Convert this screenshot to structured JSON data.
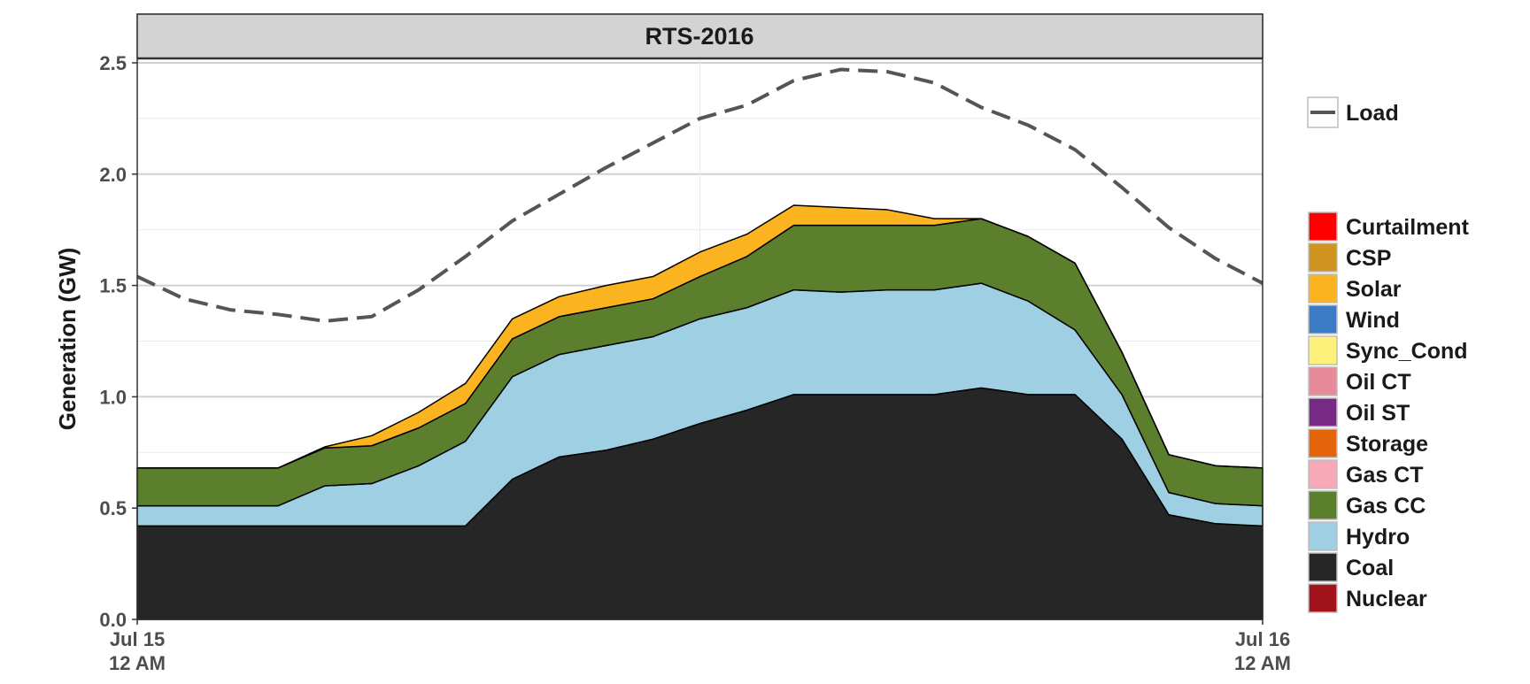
{
  "chart_data": {
    "type": "area",
    "panel_title": "RTS-2016",
    "ylabel": "Generation (GW)",
    "xlabel": "",
    "ylim": [
      0,
      2.5
    ],
    "y_ticks": [
      {
        "value": 0.0,
        "label": "0.0"
      },
      {
        "value": 0.5,
        "label": "0.5"
      },
      {
        "value": 1.0,
        "label": "1.0"
      },
      {
        "value": 1.5,
        "label": "1.5"
      },
      {
        "value": 2.0,
        "label": "2.0"
      },
      {
        "value": 2.5,
        "label": "2.5"
      }
    ],
    "x_ticks": [
      {
        "value": 0,
        "line1": "Jul 15",
        "line2": "12 AM"
      },
      {
        "value": 24,
        "line1": "Jul 16",
        "line2": "12 AM"
      }
    ],
    "xlim": [
      0,
      24
    ],
    "x": [
      0,
      1,
      2,
      3,
      4,
      5,
      6,
      7,
      8,
      9,
      10,
      11,
      12,
      13,
      14,
      15,
      16,
      17,
      18,
      19,
      20,
      21,
      22,
      23,
      24
    ],
    "grid": true,
    "legend_position": "right",
    "stack_order": [
      "Nuclear",
      "Coal",
      "Hydro",
      "Gas CC",
      "Gas CT",
      "Storage",
      "Oil ST",
      "Oil CT",
      "Sync_Cond",
      "Wind",
      "Solar",
      "CSP",
      "Curtailment"
    ],
    "series": [
      {
        "name": "Nuclear",
        "color": "#a1141c",
        "values": [
          0,
          0,
          0,
          0,
          0,
          0,
          0,
          0,
          0,
          0,
          0,
          0,
          0,
          0,
          0,
          0,
          0,
          0,
          0,
          0,
          0,
          0,
          0,
          0,
          0
        ]
      },
      {
        "name": "Coal",
        "color": "#262626",
        "values": [
          0.42,
          0.42,
          0.42,
          0.42,
          0.42,
          0.42,
          0.42,
          0.42,
          0.63,
          0.73,
          0.76,
          0.81,
          0.88,
          0.94,
          1.01,
          1.01,
          1.01,
          1.01,
          1.04,
          1.01,
          1.01,
          0.81,
          0.47,
          0.43,
          0.42
        ]
      },
      {
        "name": "Hydro",
        "color": "#9fcfe2",
        "values": [
          0.09,
          0.09,
          0.09,
          0.09,
          0.18,
          0.19,
          0.27,
          0.38,
          0.46,
          0.46,
          0.47,
          0.46,
          0.47,
          0.46,
          0.47,
          0.46,
          0.47,
          0.47,
          0.47,
          0.42,
          0.29,
          0.2,
          0.1,
          0.09,
          0.09
        ]
      },
      {
        "name": "Gas CC",
        "color": "#5c7f2e",
        "values": [
          0.17,
          0.17,
          0.17,
          0.17,
          0.17,
          0.17,
          0.17,
          0.17,
          0.17,
          0.17,
          0.17,
          0.17,
          0.19,
          0.23,
          0.29,
          0.3,
          0.29,
          0.29,
          0.29,
          0.29,
          0.3,
          0.19,
          0.17,
          0.17,
          0.17
        ]
      },
      {
        "name": "Gas CT",
        "color": "#f7a9b8",
        "values": [
          0,
          0,
          0,
          0,
          0,
          0,
          0,
          0,
          0,
          0,
          0,
          0,
          0,
          0,
          0,
          0,
          0,
          0,
          0,
          0,
          0,
          0,
          0,
          0,
          0
        ]
      },
      {
        "name": "Storage",
        "color": "#e4640c",
        "values": [
          0,
          0,
          0,
          0,
          0,
          0,
          0,
          0,
          0,
          0,
          0,
          0,
          0,
          0,
          0,
          0,
          0,
          0,
          0,
          0,
          0,
          0,
          0,
          0,
          0
        ]
      },
      {
        "name": "Oil ST",
        "color": "#762a83",
        "values": [
          0,
          0,
          0,
          0,
          0,
          0,
          0,
          0,
          0,
          0,
          0,
          0,
          0,
          0,
          0,
          0,
          0,
          0,
          0,
          0,
          0,
          0,
          0,
          0,
          0
        ]
      },
      {
        "name": "Oil CT",
        "color": "#e78a9a",
        "values": [
          0,
          0,
          0,
          0,
          0,
          0,
          0,
          0,
          0,
          0,
          0,
          0,
          0,
          0,
          0,
          0,
          0,
          0,
          0,
          0,
          0,
          0,
          0,
          0,
          0
        ]
      },
      {
        "name": "Sync_Cond",
        "color": "#fdf17b",
        "values": [
          0,
          0,
          0,
          0,
          0,
          0,
          0,
          0,
          0,
          0,
          0,
          0,
          0,
          0,
          0,
          0,
          0,
          0,
          0,
          0,
          0,
          0,
          0,
          0,
          0
        ]
      },
      {
        "name": "Wind",
        "color": "#3b7cc4",
        "values": [
          0,
          0,
          0,
          0,
          0,
          0,
          0,
          0,
          0,
          0,
          0,
          0,
          0,
          0,
          0,
          0,
          0,
          0,
          0,
          0,
          0,
          0,
          0,
          0,
          0
        ]
      },
      {
        "name": "Solar",
        "color": "#fbb41f",
        "values": [
          0,
          0,
          0,
          0,
          0.005,
          0.045,
          0.07,
          0.09,
          0.09,
          0.09,
          0.1,
          0.1,
          0.11,
          0.1,
          0.09,
          0.08,
          0.07,
          0.03,
          0,
          0,
          0,
          0,
          0,
          0,
          0
        ]
      },
      {
        "name": "CSP",
        "color": "#cf9320",
        "values": [
          0,
          0,
          0,
          0,
          0,
          0,
          0,
          0,
          0,
          0,
          0,
          0,
          0,
          0,
          0,
          0,
          0,
          0,
          0,
          0,
          0,
          0,
          0,
          0,
          0
        ]
      },
      {
        "name": "Curtailment",
        "color": "#ff0000",
        "values": [
          0,
          0,
          0,
          0,
          0,
          0,
          0,
          0,
          0,
          0,
          0,
          0,
          0,
          0,
          0,
          0,
          0,
          0,
          0,
          0,
          0,
          0,
          0,
          0,
          0
        ]
      }
    ],
    "line_series": {
      "name": "Load",
      "color": "#555555",
      "dash": "dashed",
      "values": [
        1.54,
        1.44,
        1.39,
        1.37,
        1.34,
        1.36,
        1.48,
        1.63,
        1.79,
        1.91,
        2.03,
        2.14,
        2.25,
        2.31,
        2.42,
        2.47,
        2.46,
        2.41,
        2.3,
        2.22,
        2.11,
        1.94,
        1.76,
        1.62,
        1.51
      ]
    },
    "legend_line_label": "Load",
    "legend_fill_order": [
      "Curtailment",
      "CSP",
      "Solar",
      "Wind",
      "Sync_Cond",
      "Oil CT",
      "Oil ST",
      "Storage",
      "Gas CT",
      "Gas CC",
      "Hydro",
      "Coal",
      "Nuclear"
    ]
  }
}
